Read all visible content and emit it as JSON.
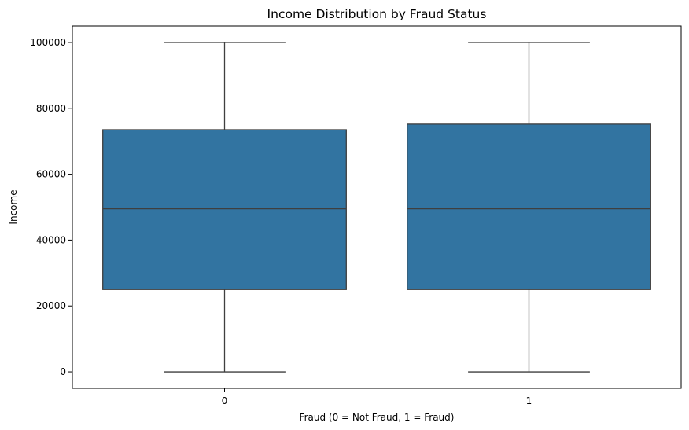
{
  "chart_data": {
    "type": "box",
    "title": "Income Distribution by Fraud Status",
    "xlabel": "Fraud (0 = Not Fraud, 1 = Fraud)",
    "ylabel": "Income",
    "categories": [
      "0",
      "1"
    ],
    "ylim": [
      -5000,
      105000
    ],
    "yticks": [
      0,
      20000,
      40000,
      60000,
      80000,
      100000
    ],
    "ytick_labels": [
      "0",
      "20000",
      "40000",
      "60000",
      "80000",
      "100000"
    ],
    "grid": false,
    "box_color": "#3274a1",
    "line_color": "#3f3f3f",
    "boxes": [
      {
        "category": "0",
        "min": 0,
        "q1": 25000,
        "median": 49500,
        "q3": 73500,
        "max": 100000
      },
      {
        "category": "1",
        "min": 0,
        "q1": 25000,
        "median": 49500,
        "q3": 75200,
        "max": 100000
      }
    ]
  }
}
